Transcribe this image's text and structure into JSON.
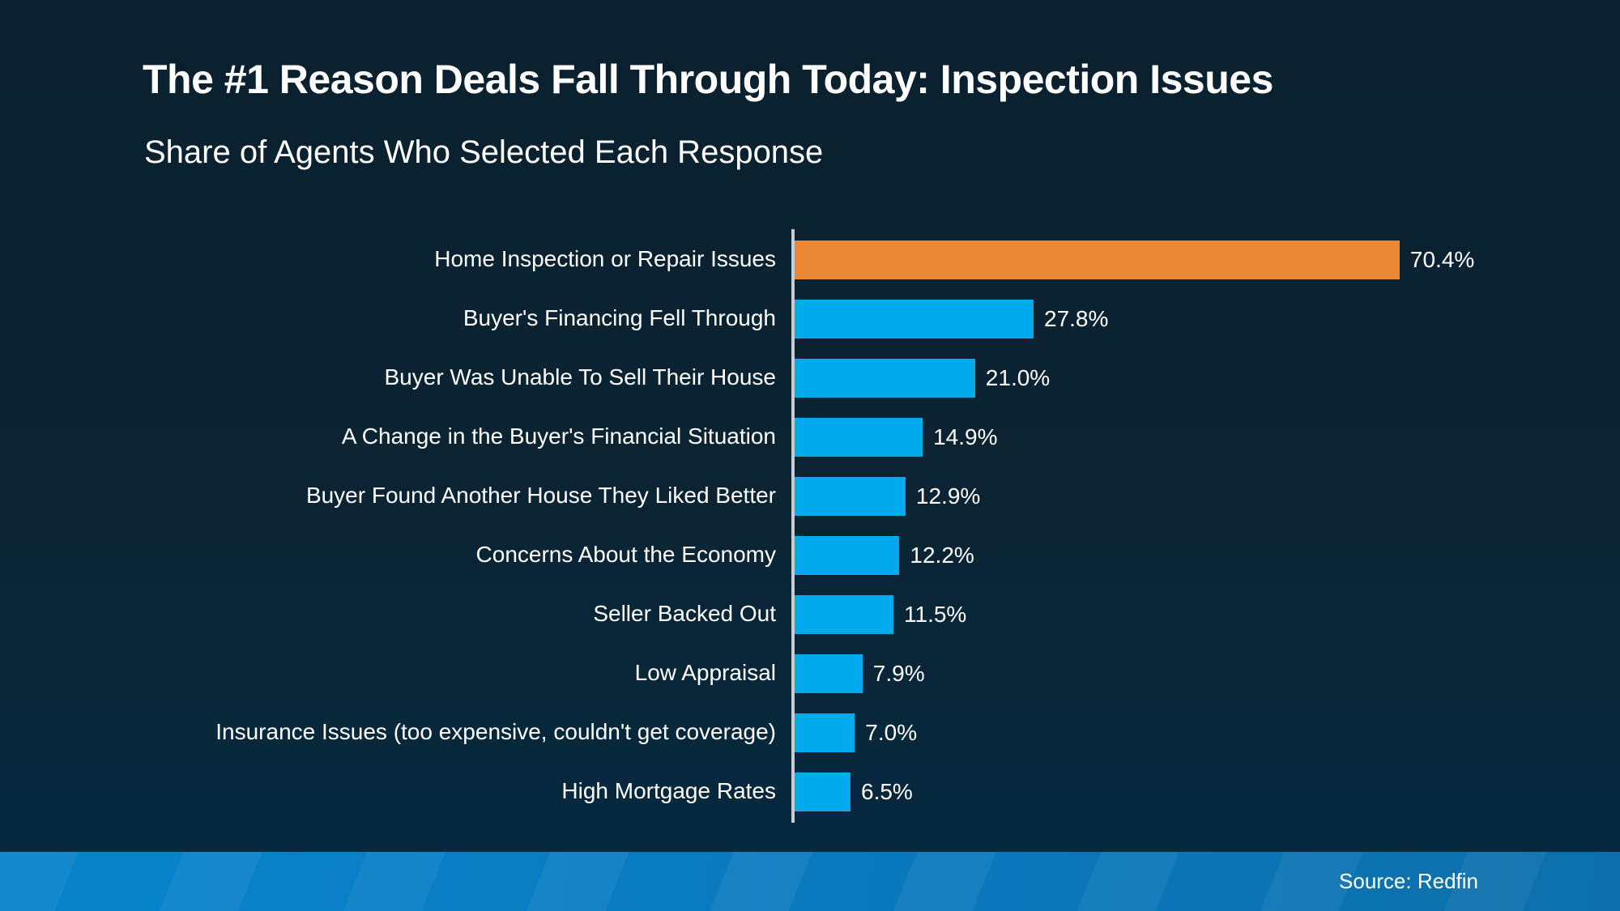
{
  "page": {
    "title": "The #1 Reason Deals Fall Through Today: Inspection Issues",
    "subtitle": "Share of Agents Who Selected Each Response",
    "source": "Source: Redfin"
  },
  "colors": {
    "background_top": "#0A202E",
    "background_mid": "#0A2433",
    "background_bottom": "#052A40",
    "bar_blue": "#00AAEB",
    "bar_highlight_orange": "#EB8838",
    "axis_line": "#C9CDD1",
    "footer_left": "#0884CB",
    "footer_right": "#0C6FA9",
    "text": "#FFFFFF"
  },
  "chart_data": {
    "type": "bar",
    "orientation": "horizontal",
    "title": "The #1 Reason Deals Fall Through Today: Inspection Issues",
    "subtitle": "Share of Agents Who Selected Each Response",
    "categories": [
      "Home Inspection or Repair Issues",
      "Buyer's Financing Fell Through",
      "Buyer Was Unable To Sell Their House",
      "A Change in the Buyer's Financial Situation",
      "Buyer Found Another House They Liked Better",
      "Concerns About the Economy",
      "Seller Backed Out",
      "Low Appraisal",
      "Insurance Issues (too expensive, couldn't get coverage)",
      "High Mortgage Rates"
    ],
    "values": [
      70.4,
      27.8,
      21.0,
      14.9,
      12.9,
      12.2,
      11.5,
      7.9,
      7.0,
      6.5
    ],
    "value_labels": [
      "70.4%",
      "27.8%",
      "21.0%",
      "14.9%",
      "12.9%",
      "12.2%",
      "11.5%",
      "7.9%",
      "7.0%",
      "6.5%"
    ],
    "highlight_index": 0,
    "xlabel": "",
    "ylabel": "",
    "xlim": [
      0,
      75
    ],
    "grid": false,
    "legend": false,
    "value_labels_shown": true,
    "source": "Source: Redfin"
  }
}
